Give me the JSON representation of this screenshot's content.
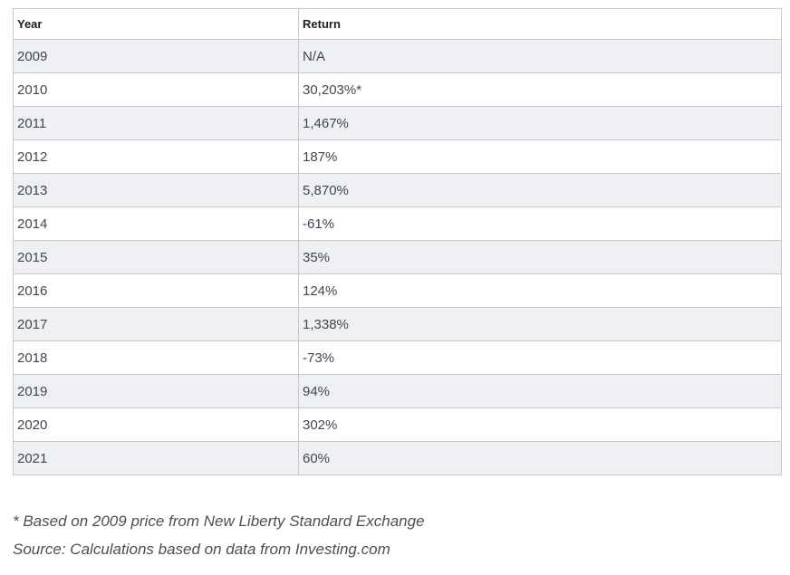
{
  "table": {
    "headers": [
      "Year",
      "Return"
    ],
    "rows": [
      [
        "2009",
        "N/A"
      ],
      [
        "2010",
        "30,203%*"
      ],
      [
        "2011",
        "1,467%"
      ],
      [
        "2012",
        "187%"
      ],
      [
        "2013",
        "5,870%"
      ],
      [
        "2014",
        "-61%"
      ],
      [
        "2015",
        "35%"
      ],
      [
        "2016",
        "124%"
      ],
      [
        "2017",
        "1,338%"
      ],
      [
        "2018",
        "-73%"
      ],
      [
        "2019",
        "94%"
      ],
      [
        "2020",
        "302%"
      ],
      [
        "2021",
        "60%"
      ]
    ]
  },
  "notes": {
    "footnote": "* Based on 2009 price from New Liberty Standard Exchange",
    "source": "Source: Calculations based on data from Investing.com"
  }
}
